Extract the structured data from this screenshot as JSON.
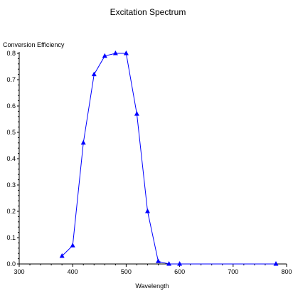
{
  "chart_data": {
    "type": "line",
    "title": "Excitation Spectrum",
    "xlabel": "Wavelength",
    "ylabel": "Conversion Efficiency",
    "xlim": [
      300,
      800
    ],
    "ylim": [
      0.0,
      0.8
    ],
    "x_ticks": [
      300,
      400,
      500,
      600,
      700,
      800
    ],
    "x_tick_labels": [
      "300",
      "400",
      "500",
      "600",
      "700",
      "800"
    ],
    "y_ticks": [
      0.0,
      0.1,
      0.2,
      0.3,
      0.4,
      0.5,
      0.6,
      0.7,
      0.8
    ],
    "y_tick_labels": [
      "0.0",
      "0.1",
      "0.2",
      "0.3",
      "0.4",
      "0.5",
      "0.6",
      "0.7",
      "0.8"
    ],
    "grid": false,
    "series": [
      {
        "color": "#0000ff",
        "marker": "triangle",
        "x": [
          380,
          400,
          420,
          440,
          460,
          480,
          500,
          520,
          540,
          560,
          580,
          600,
          780
        ],
        "y": [
          0.03,
          0.07,
          0.46,
          0.72,
          0.79,
          0.8,
          0.8,
          0.57,
          0.2,
          0.01,
          0.0,
          0.0,
          0.0
        ]
      }
    ]
  }
}
